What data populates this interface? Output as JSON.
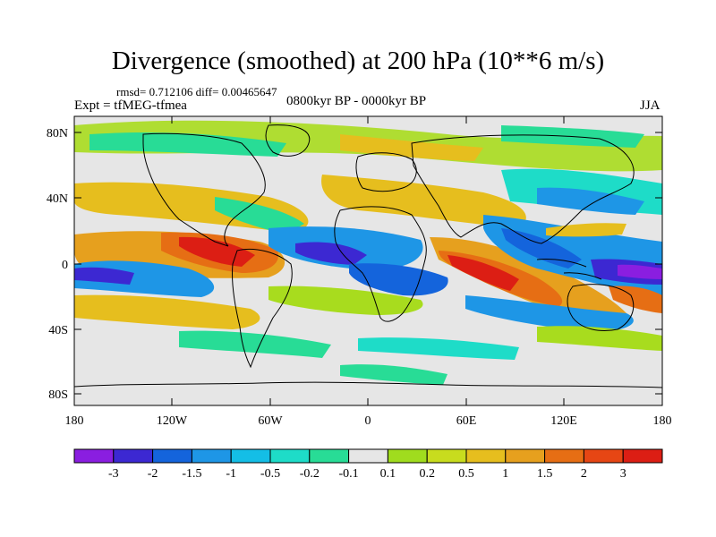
{
  "title": "Divergence (smoothed) at 200 hPa (10**6 m/s)",
  "stats": "rmsd= 0.712106 diff= 0.00465647",
  "experiment": "Expt = tfMEG-tfmea",
  "period": "0800kyr BP - 0000kyr BP",
  "season": "JJA",
  "lat_ticks": [
    "80N",
    "40N",
    "0",
    "40S",
    "80S"
  ],
  "lon_ticks": [
    "180",
    "120W",
    "60W",
    "0",
    "60E",
    "120E",
    "180"
  ],
  "colorbar": {
    "labels": [
      "-3",
      "-2",
      "-1.5",
      "-1",
      "-0.5",
      "-0.2",
      "-0.1",
      "0.1",
      "0.2",
      "0.5",
      "1",
      "1.5",
      "2",
      "3"
    ],
    "colors": [
      "#8a1ee0",
      "#3c28d2",
      "#1464dc",
      "#1e96e6",
      "#14bee6",
      "#1edcc8",
      "#28dc96",
      "#e6e6e6",
      "#a0dc1e",
      "#c8dc1e",
      "#e6be1e",
      "#e6a01e",
      "#e66e14",
      "#e64614",
      "#dc1e14"
    ]
  },
  "map_colors": {
    "land_outline": "#000000",
    "background": "#e6e6e6"
  }
}
